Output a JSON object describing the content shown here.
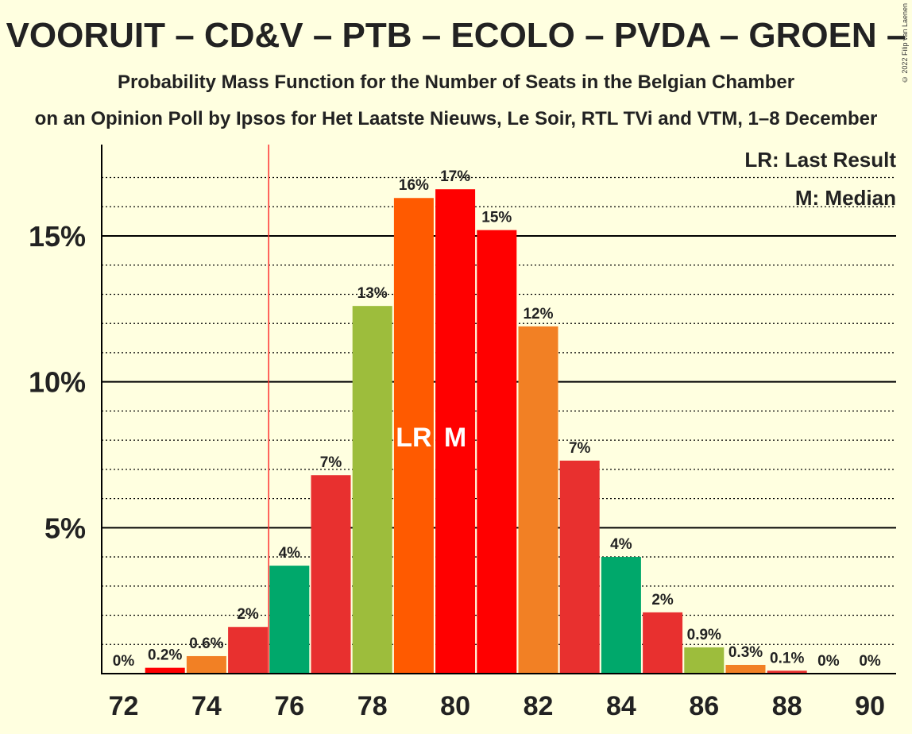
{
  "title": "VOORUIT – CD&V – PTB – ECOLO – PVDA – GROEN – ",
  "subtitle": "Probability Mass Function for the Number of Seats in the Belgian Chamber",
  "source": "on an Opinion Poll by Ipsos for Het Laatste Nieuws, Le Soir, RTL TVi and VTM, 1–8 December",
  "copyright": "© 2022 Filip van Laenen",
  "legend": {
    "lr": "LR: Last Result",
    "m": "M: Median"
  },
  "chart_data": {
    "type": "bar",
    "categories": [
      72,
      73,
      74,
      75,
      76,
      77,
      78,
      79,
      80,
      81,
      82,
      83,
      84,
      85,
      86,
      87,
      88,
      89,
      90
    ],
    "values": [
      0,
      0.2,
      0.6,
      1.6,
      3.7,
      6.8,
      12.6,
      16.3,
      16.6,
      15.2,
      11.9,
      7.3,
      4.0,
      2.1,
      0.9,
      0.3,
      0.1,
      0,
      0
    ],
    "labels": [
      "0%",
      "0.2%",
      "0.6%",
      "2%",
      "4%",
      "7%",
      "13%",
      "16%",
      "17%",
      "15%",
      "12%",
      "7%",
      "4%",
      "2%",
      "0.9%",
      "0.3%",
      "0.1%",
      "0%",
      "0%"
    ],
    "colors": [
      "#e8302f",
      "#ff0000",
      "#f28024",
      "#e8302f",
      "#00a86b",
      "#e8302f",
      "#9dbd3c",
      "#ff5a00",
      "#ff0000",
      "#ff0000",
      "#f28024",
      "#e8302f",
      "#00a86b",
      "#e8302f",
      "#9dbd3c",
      "#f28024",
      "#e8302f",
      "#e8302f",
      "#e8302f"
    ],
    "xticks": [
      "72",
      "74",
      "76",
      "78",
      "80",
      "82",
      "84",
      "86",
      "88",
      "90"
    ],
    "yticks": [
      {
        "value": 5,
        "label": "5%"
      },
      {
        "value": 10,
        "label": "10%"
      },
      {
        "value": 15,
        "label": "15%"
      }
    ],
    "ylim": [
      0,
      18
    ],
    "majority_line": 75.5,
    "last_result": {
      "seats": 79,
      "label": "LR"
    },
    "median": {
      "seats": 80,
      "label": "M"
    }
  }
}
